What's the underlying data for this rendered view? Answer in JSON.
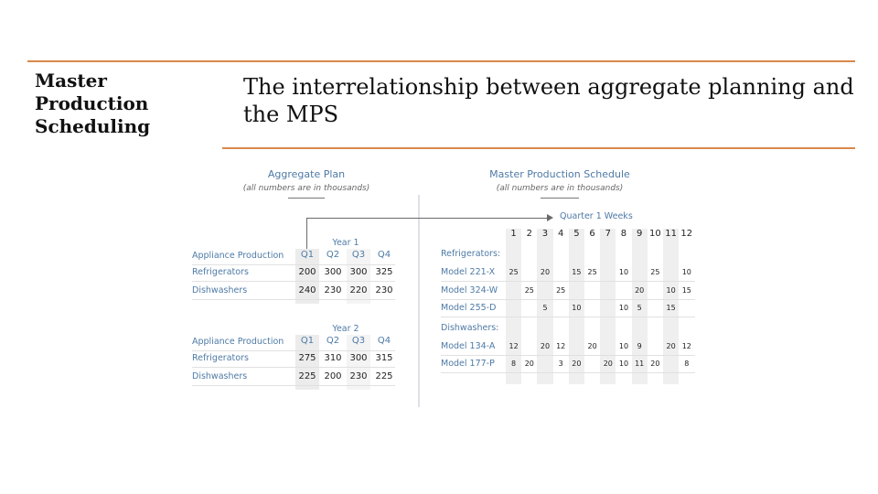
{
  "slide": {
    "side_title_lines": [
      "Master",
      "Production",
      "Scheduling"
    ],
    "title": "The interrelationship between aggregate planning and the MPS",
    "accent_color": "#d9884a"
  },
  "aggregate_plan": {
    "title": "Aggregate Plan",
    "subtitle": "(all numbers are in thousands)",
    "years": [
      {
        "label": "Year 1",
        "header": "Appliance Production",
        "quarters": [
          "Q1",
          "Q2",
          "Q3",
          "Q4"
        ],
        "rows": [
          {
            "name": "Refrigerators",
            "values": [
              "200",
              "300",
              "300",
              "325"
            ]
          },
          {
            "name": "Dishwashers",
            "values": [
              "240",
              "230",
              "220",
              "230"
            ]
          }
        ]
      },
      {
        "label": "Year 2",
        "header": "Appliance Production",
        "quarters": [
          "Q1",
          "Q2",
          "Q3",
          "Q4"
        ],
        "rows": [
          {
            "name": "Refrigerators",
            "values": [
              "275",
              "310",
              "300",
              "315"
            ]
          },
          {
            "name": "Dishwashers",
            "values": [
              "225",
              "200",
              "230",
              "225"
            ]
          }
        ]
      }
    ]
  },
  "mps": {
    "title": "Master Production Schedule",
    "subtitle": "(all numbers are in thousands)",
    "weeks_label": "Quarter 1 Weeks",
    "weeks": [
      "1",
      "2",
      "3",
      "4",
      "5",
      "6",
      "7",
      "8",
      "9",
      "10",
      "11",
      "12"
    ],
    "groups": [
      {
        "name": "Refrigerators:",
        "rows": [
          {
            "model": "Model 221-X",
            "values": [
              "25",
              "",
              "20",
              "",
              "15",
              "25",
              "",
              "10",
              "",
              "25",
              "",
              "10"
            ]
          },
          {
            "model": "Model 324-W",
            "values": [
              "",
              "25",
              "",
              "25",
              "",
              "",
              "",
              "",
              "20",
              "",
              "10",
              "15"
            ]
          },
          {
            "model": "Model 255-D",
            "values": [
              "",
              "",
              "5",
              "",
              "10",
              "",
              "",
              "10",
              "5",
              "",
              "15",
              ""
            ]
          }
        ]
      },
      {
        "name": "Dishwashers:",
        "rows": [
          {
            "model": "Model 134-A",
            "values": [
              "12",
              "",
              "20",
              "12",
              "",
              "20",
              "",
              "10",
              "9",
              "",
              "20",
              "12"
            ]
          },
          {
            "model": "Model 177-P",
            "values": [
              "8",
              "20",
              "",
              "3",
              "20",
              "",
              "20",
              "10",
              "11",
              "20",
              "",
              "8"
            ]
          }
        ]
      }
    ]
  }
}
